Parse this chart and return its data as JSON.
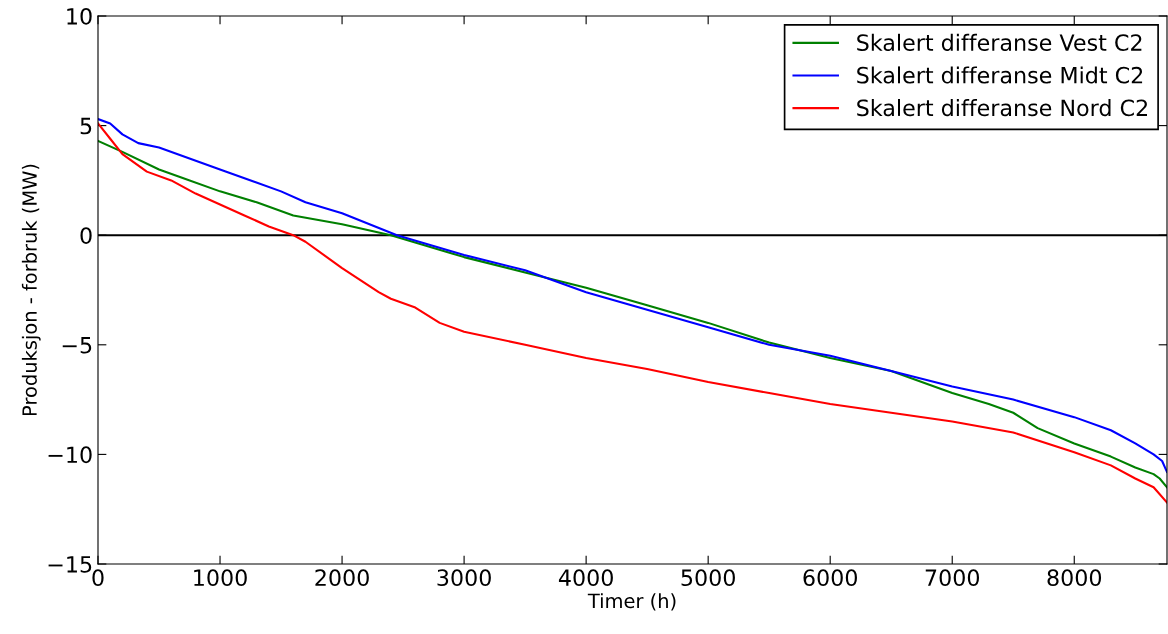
{
  "chart_data": {
    "type": "line",
    "xlabel": "Timer (h)",
    "ylabel": "Produksjon - forbruk (MW)",
    "xlim": [
      0,
      8760
    ],
    "ylim": [
      -15,
      10
    ],
    "xticks": [
      0,
      1000,
      2000,
      3000,
      4000,
      5000,
      6000,
      7000,
      8000
    ],
    "yticks": [
      -15,
      -10,
      -5,
      0,
      5,
      10
    ],
    "grid": false,
    "legend": "top right",
    "marker": "none",
    "line_style": "solid",
    "ref_lines": [
      {
        "axis": "y",
        "value": 0,
        "color": "#000000"
      }
    ],
    "series": [
      {
        "name": "Skalert differanse Vest C2",
        "color": "#008000",
        "x": [
          0,
          200,
          500,
          700,
          1000,
          1300,
          1600,
          2000,
          2400,
          3000,
          3500,
          4000,
          4500,
          5000,
          5500,
          6000,
          6500,
          7000,
          7300,
          7500,
          7700,
          8000,
          8300,
          8500,
          8650,
          8700,
          8760
        ],
        "values": [
          4.3,
          3.8,
          3.0,
          2.6,
          2.0,
          1.5,
          0.9,
          0.5,
          0.0,
          -1.0,
          -1.7,
          -2.4,
          -3.2,
          -4.0,
          -4.9,
          -5.6,
          -6.2,
          -7.2,
          -7.7,
          -8.1,
          -8.8,
          -9.5,
          -10.1,
          -10.6,
          -10.9,
          -11.1,
          -11.5
        ]
      },
      {
        "name": "Skalert differanse Midt C2",
        "color": "#0000ff",
        "x": [
          0,
          100,
          200,
          330,
          500,
          1000,
          1500,
          1700,
          2000,
          2450,
          3000,
          3500,
          4000,
          4500,
          5000,
          5500,
          6000,
          6500,
          7000,
          7500,
          8000,
          8300,
          8500,
          8650,
          8720,
          8760
        ],
        "values": [
          5.3,
          5.1,
          4.6,
          4.2,
          4.0,
          3.0,
          2.0,
          1.5,
          1.0,
          0.0,
          -0.9,
          -1.6,
          -2.6,
          -3.4,
          -4.2,
          -5.0,
          -5.5,
          -6.2,
          -6.9,
          -7.5,
          -8.3,
          -8.9,
          -9.5,
          -10.0,
          -10.3,
          -10.8
        ]
      },
      {
        "name": "Skalert differanse Nord C2",
        "color": "#ff0000",
        "x": [
          0,
          100,
          200,
          400,
          600,
          800,
          1000,
          1200,
          1400,
          1600,
          1700,
          2000,
          2300,
          2400,
          2600,
          2800,
          3000,
          3500,
          4000,
          4500,
          5000,
          5500,
          6000,
          6500,
          7000,
          7500,
          8000,
          8300,
          8500,
          8650,
          8760
        ],
        "values": [
          5.1,
          4.4,
          3.7,
          2.9,
          2.5,
          1.9,
          1.4,
          0.9,
          0.4,
          0.0,
          -0.3,
          -1.5,
          -2.6,
          -2.9,
          -3.3,
          -4.0,
          -4.4,
          -5.0,
          -5.6,
          -6.1,
          -6.7,
          -7.2,
          -7.7,
          -8.1,
          -8.5,
          -9.0,
          -9.9,
          -10.5,
          -11.1,
          -11.5,
          -12.2
        ]
      }
    ]
  }
}
